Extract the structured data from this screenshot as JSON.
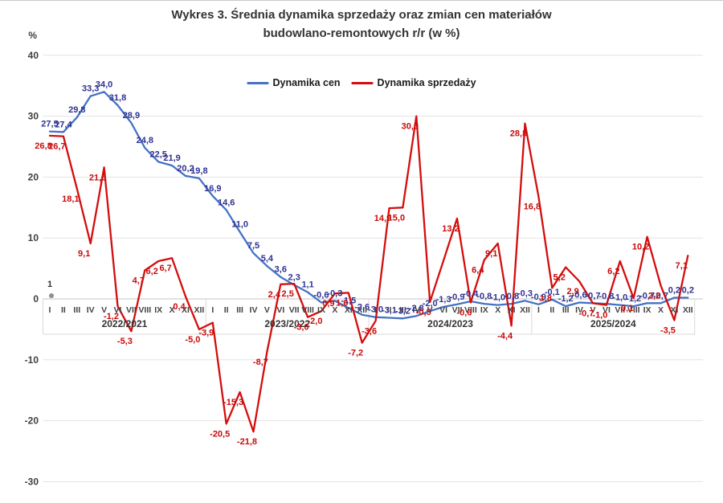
{
  "title": {
    "line1": "Wykres 3. Średnia dynamika sprzedaży oraz zmian cen materiałów",
    "line2": "budowlano-remontowych r/r (w %)"
  },
  "legend": [
    {
      "label": "Dynamika cen",
      "color": "#4472C4"
    },
    {
      "label": "Dynamika sprzedaży",
      "color": "#D40D0D"
    }
  ],
  "y_axis": {
    "unit": "%",
    "ticks": [
      "40",
      "30",
      "20",
      "10",
      "0",
      "-10",
      "-20",
      "-30"
    ]
  },
  "annotation": {
    "text": "1"
  },
  "chart_data": {
    "type": "line",
    "title": "Wykres 3. Średnia dynamika sprzedaży oraz zmian cen materiałów budowlano-remontowych r/r (w %)",
    "ylabel": "%",
    "ylim": [
      -30,
      40
    ],
    "y_ticks": [
      40,
      30,
      20,
      10,
      0,
      -10,
      -20,
      -30
    ],
    "grid": true,
    "legend_position": "top-center",
    "x_groups": [
      {
        "year": "2022/2021",
        "months": [
          "I",
          "II",
          "III",
          "IV",
          "V",
          "VI",
          "VII",
          "VIII",
          "IX",
          "X",
          "XI",
          "XII"
        ]
      },
      {
        "year": "2023/2022",
        "months": [
          "I",
          "II",
          "III",
          "IV",
          "V",
          "VI",
          "VII",
          "VIII",
          "IX",
          "X",
          "XI",
          "XII"
        ]
      },
      {
        "year": "2024/2023",
        "months": [
          "I",
          "II",
          "III",
          "IV",
          "V",
          "VI",
          "VII",
          "VIII",
          "IX",
          "X",
          "XI",
          "XII"
        ]
      },
      {
        "year": "2025/2024",
        "months": [
          "I",
          "II",
          "III",
          "IV",
          "V",
          "VI",
          "VII",
          "VIII",
          "IX",
          "X",
          "XI",
          "XII"
        ]
      }
    ],
    "series": [
      {
        "name": "Dynamika cen",
        "color": "#4472C4",
        "label_color": "#2E3192",
        "values": [
          27.5,
          27.4,
          29.8,
          33.3,
          34.0,
          31.8,
          28.9,
          24.8,
          22.5,
          21.9,
          20.2,
          19.8,
          16.9,
          14.6,
          11.0,
          7.5,
          5.4,
          3.6,
          2.3,
          1.1,
          -0.6,
          -0.3,
          -1.5,
          -2.6,
          -3.0,
          -3.1,
          -3.2,
          -2.8,
          -2.0,
          -1.3,
          -0.9,
          -0.4,
          -0.8,
          -1.0,
          -0.8,
          -0.3,
          -0.9,
          -0.1,
          -1.2,
          -0.6,
          -0.7,
          -0.8,
          -1.0,
          -1.2,
          -0.7,
          -0.7,
          0.2,
          0.2
        ],
        "labels": [
          "27,5",
          "27,4",
          "29,8",
          "33,3",
          "34,0",
          "31,8",
          "28,9",
          "24,8",
          "22,5",
          "21,9",
          "20,2",
          "19,8",
          "16,9",
          "14,6",
          "11,0",
          "7,5",
          "5,4",
          "3,6",
          "2,3",
          "1,1",
          "-0,6",
          "-0,3",
          "-1,5",
          "-2,6",
          "-3,0",
          "-3,1",
          "-3,2",
          "-2,8",
          "-2,0",
          "-1,3",
          "-0,9",
          "-0,4",
          "-0,8",
          "-1,0",
          "-0,8",
          "-0,3",
          "-0,9",
          "-0,1",
          "-1,2",
          "-0,6",
          "-0,7",
          "-0,8",
          "-1,0",
          "-1,2",
          "-0,7",
          "-0,7",
          "0,2",
          "0,2"
        ]
      },
      {
        "name": "Dynamika sprzedaży",
        "color": "#D40D0D",
        "label_color": "#C90A0A",
        "values": [
          26.8,
          26.7,
          18.1,
          9.1,
          21.6,
          -1.2,
          -5.3,
          4.7,
          6.2,
          6.7,
          0.4,
          -5.0,
          -3.9,
          -20.5,
          -15.3,
          -21.8,
          -8.7,
          2.4,
          2.5,
          -3.0,
          -2.0,
          0.9,
          1.0,
          -7.2,
          -3.6,
          14.9,
          15.0,
          30.0,
          -0.5,
          6.3,
          13.2,
          -0.6,
          6.4,
          9.1,
          -4.4,
          28.8,
          16.8,
          1.8,
          5.2,
          2.9,
          -0.7,
          -1.0,
          6.2,
          0.1,
          10.2,
          2.2,
          -3.5,
          7.1
        ],
        "labels": [
          "26,8",
          "26,7",
          "18,1",
          "9,1",
          "21,6",
          "-1,2",
          "-5,3",
          "4,7",
          "6,2",
          "6,7",
          "0,4",
          "-5,0",
          "-3,9",
          "-20,5",
          "-15,3",
          "-21,8",
          "-8,7",
          "2,4",
          "2,5",
          "-3,0",
          "-2,0",
          "0,9",
          "1,0",
          "-7,2",
          "-3,6",
          "14,9",
          "15,0",
          "30,0",
          "-0,5",
          "",
          "13,2",
          "-0,6",
          "6,4",
          "9,1",
          "-4,4",
          "28,8",
          "16,8",
          "1,8",
          "5,2",
          "2,9",
          "-0,7",
          "-1,0",
          "6,2",
          "0,1",
          "10,2",
          "2,2",
          "-3,5",
          "7,1"
        ]
      }
    ]
  }
}
